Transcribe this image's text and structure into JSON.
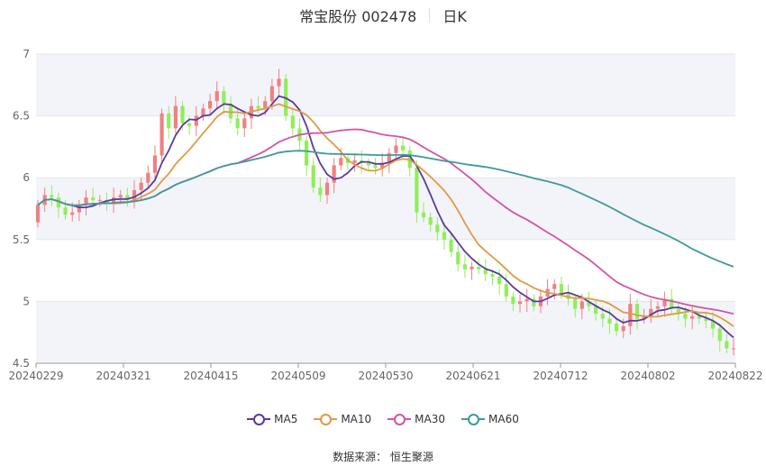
{
  "header": {
    "title": "常宝股份 002478",
    "period": "日K"
  },
  "footer": {
    "source": "数据来源：  恒生聚源"
  },
  "colors": {
    "up": "#f08080",
    "down": "#90ee5a",
    "ma5": "#5b3a9e",
    "ma10": "#e09a45",
    "ma30": "#d454a6",
    "ma60": "#3f9a9a"
  },
  "chart_data": {
    "type": "candlestick",
    "ylim": [
      4.5,
      7.0
    ],
    "y_ticks": [
      "4.5",
      "5",
      "5.5",
      "6",
      "6.5",
      "7"
    ],
    "x_ticks": [
      "20240229",
      "20240321",
      "20240415",
      "20240509",
      "20240530",
      "20240621",
      "20240712",
      "20240802",
      "20240822"
    ],
    "legend": [
      {
        "name": "MA5",
        "color": "#5b3a9e"
      },
      {
        "name": "MA10",
        "color": "#e09a45"
      },
      {
        "name": "MA30",
        "color": "#d454a6"
      },
      {
        "name": "MA60",
        "color": "#3f9a9a"
      }
    ],
    "close": [
      5.78,
      5.86,
      5.84,
      5.76,
      5.7,
      5.72,
      5.78,
      5.84,
      5.82,
      5.82,
      5.8,
      5.84,
      5.86,
      5.82,
      5.9,
      5.96,
      6.04,
      6.18,
      6.52,
      6.4,
      6.58,
      6.44,
      6.42,
      6.5,
      6.56,
      6.62,
      6.7,
      6.6,
      6.48,
      6.4,
      6.48,
      6.58,
      6.56,
      6.62,
      6.74,
      6.8,
      6.5,
      6.4,
      6.3,
      6.1,
      5.92,
      5.86,
      5.96,
      6.1,
      6.16,
      6.12,
      6.14,
      6.12,
      6.1,
      6.08,
      6.12,
      6.2,
      6.26,
      6.22,
      6.08,
      5.72,
      5.68,
      5.62,
      5.56,
      5.5,
      5.4,
      5.3,
      5.26,
      5.28,
      5.26,
      5.22,
      5.2,
      5.14,
      5.04,
      4.98,
      5.0,
      5.02,
      4.96,
      5.04,
      5.1,
      5.14,
      5.06,
      5.02,
      4.94,
      5.0,
      4.96,
      4.9,
      4.86,
      4.82,
      4.76,
      4.8,
      4.98,
      4.86,
      4.88,
      4.94,
      4.96,
      5.02,
      4.94,
      4.9,
      4.86,
      4.88,
      4.86,
      4.84,
      4.78,
      4.68,
      4.62,
      4.62
    ]
  }
}
